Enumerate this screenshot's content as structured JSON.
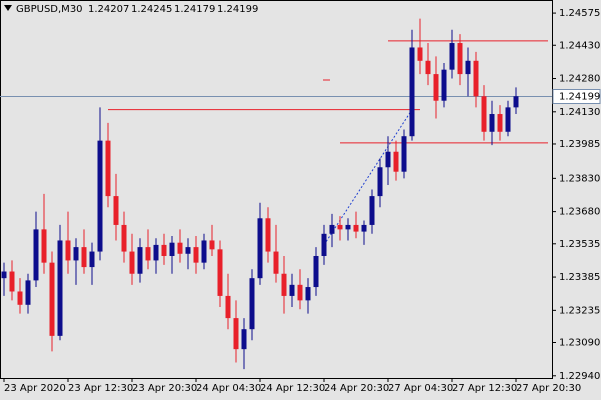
{
  "chart_data": {
    "type": "candlestick",
    "symbol": "GBPUSD,M30",
    "quote": [
      1.24207,
      1.24245,
      1.24179,
      1.24199
    ],
    "categories": [
      "23 Apr 2020",
      null,
      null,
      null,
      null,
      null,
      null,
      null,
      "23 Apr 12:30",
      null,
      null,
      null,
      null,
      null,
      null,
      null,
      "23 Apr 20:30",
      null,
      null,
      null,
      null,
      null,
      null,
      null,
      "24 Apr 04:30",
      null,
      null,
      null,
      null,
      null,
      null,
      null,
      "24 Apr 12:30",
      null,
      null,
      null,
      null,
      null,
      null,
      null,
      "24 Apr 20:30",
      null,
      null,
      null,
      null,
      null,
      null,
      null,
      "27 Apr 04:30",
      null,
      null,
      null,
      null,
      null,
      null,
      null,
      "27 Apr 12:30",
      null,
      null,
      null,
      null,
      null,
      null,
      null,
      "27 Apr 20:30"
    ],
    "open": [
      1.2338,
      1.2341,
      1.2332,
      1.2326,
      1.2337,
      1.236,
      1.2345,
      1.2312,
      1.2355,
      1.2346,
      1.2352,
      1.2343,
      1.235,
      1.24,
      1.2375,
      1.2362,
      1.235,
      1.234,
      1.2352,
      1.2346,
      1.2353,
      1.2348,
      1.2354,
      1.2349,
      1.2352,
      1.2345,
      1.2355,
      1.2351,
      1.233,
      1.232,
      1.2306,
      1.2315,
      1.2338,
      1.2365,
      1.235,
      1.234,
      1.233,
      1.2335,
      1.2328,
      1.2334,
      1.2348,
      1.2358,
      1.2362,
      1.236,
      1.2362,
      1.2359,
      1.2362,
      1.2375,
      1.2388,
      1.2395,
      1.2386,
      1.2402,
      1.2442,
      1.2436,
      1.243,
      1.2418,
      1.2432,
      1.2444,
      1.243,
      1.2436,
      1.242,
      1.2404,
      1.2412,
      1.2404,
      1.2415
    ],
    "high": [
      1.2345,
      1.2346,
      1.2338,
      1.234,
      1.2368,
      1.2376,
      1.235,
      1.2362,
      1.2368,
      1.2356,
      1.236,
      1.2354,
      1.2415,
      1.2408,
      1.2385,
      1.2368,
      1.2358,
      1.2356,
      1.236,
      1.2356,
      1.2358,
      1.2357,
      1.236,
      1.2356,
      1.2357,
      1.2358,
      1.2362,
      1.2355,
      1.234,
      1.2328,
      1.232,
      1.2342,
      1.2372,
      1.237,
      1.2362,
      1.2348,
      1.234,
      1.2342,
      1.2338,
      1.2352,
      1.2362,
      1.2367,
      1.2366,
      1.2365,
      1.2368,
      1.2364,
      1.2378,
      1.2392,
      1.2402,
      1.24,
      1.2405,
      1.245,
      1.2455,
      1.2444,
      1.2438,
      1.2435,
      1.245,
      1.2448,
      1.2442,
      1.244,
      1.2425,
      1.2418,
      1.2416,
      1.2418,
      1.2424
    ],
    "low": [
      1.233,
      1.2328,
      1.2322,
      1.2322,
      1.2334,
      1.234,
      1.2305,
      1.231,
      1.234,
      1.2335,
      1.234,
      1.2335,
      1.2346,
      1.237,
      1.2355,
      1.2345,
      1.2335,
      1.2336,
      1.2342,
      1.234,
      1.2344,
      1.234,
      1.2345,
      1.2342,
      1.234,
      1.2342,
      1.2348,
      1.2325,
      1.2315,
      1.23,
      1.2297,
      1.231,
      1.2335,
      1.2345,
      1.2336,
      1.2322,
      1.2325,
      1.2324,
      1.2322,
      1.233,
      1.2344,
      1.2352,
      1.2355,
      1.2355,
      1.2356,
      1.2353,
      1.2358,
      1.237,
      1.238,
      1.2382,
      1.2383,
      1.24,
      1.243,
      1.2425,
      1.241,
      1.2415,
      1.2428,
      1.2425,
      1.242,
      1.2415,
      1.24,
      1.2398,
      1.24,
      1.2402,
      1.2412
    ],
    "close": [
      1.2341,
      1.2332,
      1.2326,
      1.2337,
      1.236,
      1.2345,
      1.2312,
      1.2355,
      1.2346,
      1.2352,
      1.2343,
      1.235,
      1.24,
      1.2375,
      1.2362,
      1.235,
      1.234,
      1.2352,
      1.2346,
      1.2353,
      1.2348,
      1.2354,
      1.2349,
      1.2352,
      1.2345,
      1.2355,
      1.2351,
      1.233,
      1.232,
      1.2306,
      1.2315,
      1.2338,
      1.2365,
      1.235,
      1.234,
      1.233,
      1.2335,
      1.2328,
      1.2334,
      1.2348,
      1.2358,
      1.2362,
      1.236,
      1.2362,
      1.2359,
      1.2362,
      1.2375,
      1.2388,
      1.2395,
      1.2386,
      1.2402,
      1.2442,
      1.2436,
      1.243,
      1.2418,
      1.2432,
      1.2444,
      1.243,
      1.2436,
      1.242,
      1.2404,
      1.2412,
      1.2404,
      1.2415,
      1.242
    ],
    "up_color": "#0d0d8c",
    "down_color": "#e8202a",
    "ylim": [
      1.2293,
      1.24634
    ],
    "yticks": [
      1.24575,
      {
        "value": 1.2443,
        "label": "1.24430"
      },
      {
        "value": 1.2428,
        "label": "1.24280"
      },
      {
        "value": 1.2413,
        "label": "1.24130"
      },
      1.23985,
      {
        "value": 1.2383,
        "label": "1.23830"
      },
      {
        "value": 1.2368,
        "label": "1.23680"
      },
      1.23535,
      1.23385,
      1.23235,
      {
        "value": 1.2309,
        "label": "1.23090"
      },
      {
        "value": 1.2294,
        "label": "1.22940"
      }
    ],
    "current_price": 1.24199,
    "hlines": [
      {
        "value": 1.2445,
        "from": 48,
        "color": "#e8202a"
      },
      {
        "value": 1.2414,
        "from": 13,
        "to": 52,
        "color": "#e8202a"
      },
      {
        "value": 1.2399,
        "from": 42,
        "color": "#e8202a"
      }
    ],
    "trendline": {
      "from": [
        40,
        1.2353
      ],
      "to": [
        51,
        1.2414
      ],
      "color": "#1f3fd0"
    }
  }
}
